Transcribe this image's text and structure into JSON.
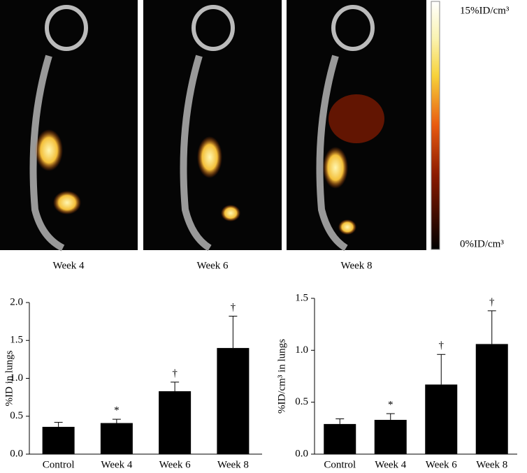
{
  "images": {
    "labels": [
      "Week 4",
      "Week 6",
      "Week 8"
    ]
  },
  "colorbar": {
    "max_label": "15%ID/cm³",
    "min_label": "0%ID/cm³"
  },
  "chart_data": [
    {
      "type": "bar",
      "y_label": "%ID in lungs",
      "categories": [
        "Control",
        "Week 4",
        "Week 6",
        "Week 8"
      ],
      "values": [
        0.36,
        0.41,
        0.83,
        1.4
      ],
      "errors": [
        0.06,
        0.05,
        0.12,
        0.42
      ],
      "annotations": [
        null,
        "*",
        "†",
        "†"
      ],
      "color": "#000000",
      "ylim": [
        0,
        2.0
      ],
      "yticks": [
        {
          "value": 0,
          "label": "0.0"
        },
        0.5,
        {
          "value": 1,
          "label": "1.0"
        },
        1.5,
        {
          "value": 2,
          "label": "2.0"
        }
      ]
    },
    {
      "type": "bar",
      "y_label": "%ID/cm³ in lungs",
      "categories": [
        "Control",
        "Week 4",
        "Week 6",
        "Week 8"
      ],
      "values": [
        0.29,
        0.33,
        0.67,
        1.06
      ],
      "errors": [
        0.05,
        0.06,
        0.29,
        0.32
      ],
      "annotations": [
        null,
        "*",
        "†",
        "†"
      ],
      "color": "#000000",
      "ylim": [
        0,
        1.5
      ],
      "yticks": [
        {
          "value": 0,
          "label": "0.0"
        },
        0.5,
        {
          "value": 1,
          "label": "1.0"
        },
        1.5
      ]
    }
  ]
}
